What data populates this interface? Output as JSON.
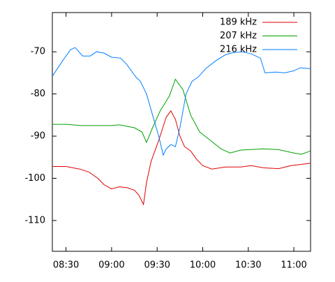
{
  "chart_data": {
    "type": "line",
    "xlim": [
      501,
      671
    ],
    "xticks": [
      {
        "value": 510,
        "label": "08:30"
      },
      {
        "value": 540,
        "label": "09:00"
      },
      {
        "value": 570,
        "label": "09:30"
      },
      {
        "value": 600,
        "label": "10:00"
      },
      {
        "value": 630,
        "label": "10:30"
      },
      {
        "value": 660,
        "label": "11:00"
      }
    ],
    "ylim": [
      -117.3,
      -60.7
    ],
    "yticks": [
      -110,
      -100,
      -90,
      -80,
      -70
    ],
    "legend": "top-right",
    "grid": false,
    "series": [
      {
        "name": "189 kHz",
        "color": "#e00000",
        "x": [
          501,
          510,
          519,
          525,
          531,
          535,
          540,
          545,
          550,
          555,
          558,
          561,
          563,
          566,
          571,
          576,
          579,
          582,
          585,
          588,
          592,
          596,
          600,
          606,
          615,
          625,
          632,
          640,
          650,
          658,
          665,
          671
        ],
        "values": [
          -97.2,
          -97.2,
          -97.8,
          -98.5,
          -100,
          -101.5,
          -102.5,
          -102,
          -102.2,
          -102.8,
          -104,
          -106.2,
          -101,
          -96,
          -91,
          -85.5,
          -84,
          -86,
          -90,
          -92.5,
          -93.5,
          -95.5,
          -97,
          -97.8,
          -97.3,
          -97.3,
          -97,
          -97.5,
          -97.7,
          -97,
          -96.7,
          -96.4
        ]
      },
      {
        "name": "207 kHz",
        "color": "#00a000",
        "x": [
          501,
          510,
          520,
          530,
          540,
          545,
          555,
          560,
          563,
          567,
          572,
          578,
          582,
          587,
          592,
          598,
          605,
          612,
          618,
          625,
          640,
          650,
          660,
          665,
          671
        ],
        "values": [
          -87.2,
          -87.2,
          -87.5,
          -87.5,
          -87.5,
          -87.3,
          -88,
          -89,
          -91.5,
          -88,
          -84,
          -80.5,
          -76.5,
          -79,
          -85,
          -89,
          -91,
          -93,
          -94,
          -93.3,
          -93,
          -93.2,
          -94,
          -94.3,
          -93.5
        ]
      },
      {
        "name": "216 kHz",
        "color": "#0080ff",
        "x": [
          501,
          508,
          513,
          516,
          521,
          526,
          530,
          535,
          540,
          546,
          550,
          556,
          559,
          563,
          567,
          571,
          574,
          576,
          579,
          582,
          585,
          587,
          589,
          593,
          597,
          602,
          609,
          615,
          620,
          626,
          632,
          638,
          641,
          648,
          654,
          660,
          664,
          671
        ],
        "values": [
          -75.8,
          -72,
          -69.5,
          -69,
          -71,
          -71,
          -70,
          -70.3,
          -71.3,
          -71.5,
          -73,
          -76,
          -77,
          -80,
          -85,
          -90,
          -94.5,
          -93,
          -92,
          -92.5,
          -88,
          -84,
          -80,
          -77,
          -76,
          -74,
          -72,
          -70.7,
          -70.2,
          -70,
          -70.5,
          -71.5,
          -75,
          -74.8,
          -75,
          -74.5,
          -73.8,
          -74
        ]
      }
    ]
  }
}
